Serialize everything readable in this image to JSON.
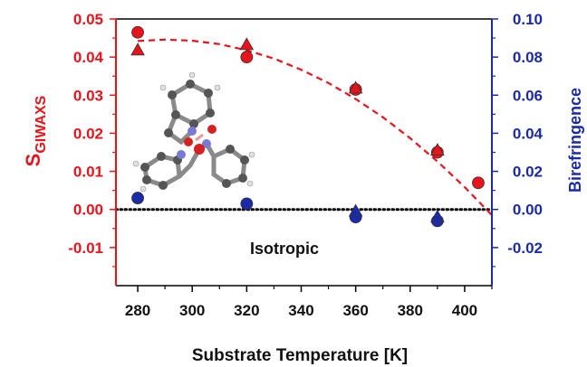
{
  "colors": {
    "left_axis": "#e8141c",
    "right_axis": "#1b2aa8",
    "text": "#111111",
    "reference_line": "#000000"
  },
  "chart_data": {
    "type": "scatter",
    "title": "",
    "xlabel": "Substrate Temperature [K]",
    "ylabel_left_main": "S",
    "ylabel_left_sub": "GIWAXS",
    "ylabel_right": "Birefringence",
    "xlim": [
      272,
      410
    ],
    "ylim_left": [
      -0.02,
      0.05
    ],
    "ylim_right": [
      -0.04,
      0.1
    ],
    "x_ticks": [
      280,
      300,
      320,
      340,
      360,
      380,
      400
    ],
    "y_left_ticks": [
      -0.01,
      0.0,
      0.01,
      0.02,
      0.03,
      0.04,
      0.05
    ],
    "y_left_tick_labels": [
      "-0.01",
      "0.00",
      "0.01",
      "0.02",
      "0.03",
      "0.04",
      "0.05"
    ],
    "y_right_ticks": [
      -0.02,
      0.0,
      0.02,
      0.04,
      0.06,
      0.08,
      0.1
    ],
    "y_right_tick_labels": [
      "-0.02",
      "0.00",
      "0.02",
      "0.04",
      "0.06",
      "0.08",
      "0.10"
    ],
    "series": [
      {
        "axis": "left",
        "marker": "circle",
        "color": "#e8141c",
        "x": [
          280,
          320,
          360,
          390,
          405
        ],
        "y": [
          0.0465,
          0.04,
          0.0315,
          0.015,
          0.007
        ]
      },
      {
        "axis": "left",
        "marker": "triangle",
        "color": "#e8141c",
        "x": [
          280,
          320,
          360,
          390
        ],
        "y": [
          0.0418,
          0.0432,
          0.0318,
          0.0155
        ]
      },
      {
        "axis": "right",
        "marker": "circle",
        "color": "#1b2aa8",
        "x": [
          280,
          320,
          360,
          390
        ],
        "y": [
          0.006,
          0.003,
          -0.004,
          -0.006
        ]
      },
      {
        "axis": "right",
        "marker": "triangle",
        "color": "#1b2aa8",
        "x": [
          360,
          390
        ],
        "y": [
          -0.001,
          -0.004
        ]
      }
    ],
    "fit": {
      "axis": "left",
      "style": "dashed",
      "color": "#e8141c",
      "x": [
        280,
        290,
        300,
        310,
        320,
        330,
        340,
        350,
        360,
        370,
        380,
        390,
        400,
        410
      ],
      "y": [
        0.0442,
        0.0446,
        0.0443,
        0.0434,
        0.0418,
        0.0396,
        0.0367,
        0.0332,
        0.029,
        0.0242,
        0.0187,
        0.0126,
        0.0059,
        -0.0015
      ]
    },
    "reference_line": {
      "axis": "left",
      "y": 0.0,
      "style": "dotted",
      "label": "Isotropic"
    }
  }
}
